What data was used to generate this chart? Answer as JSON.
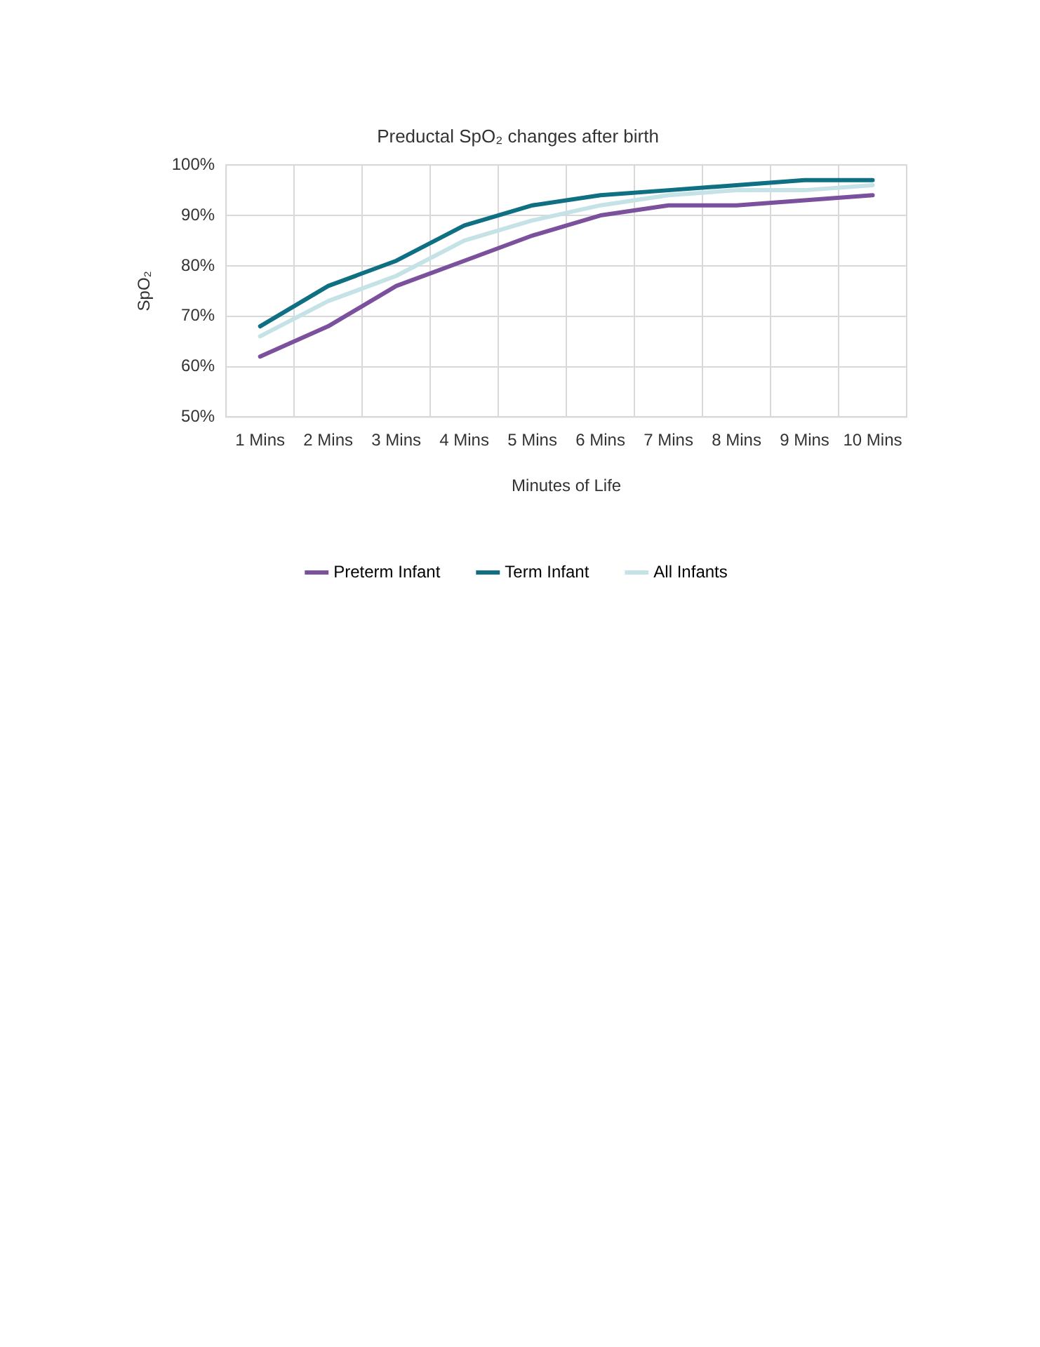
{
  "chart_data": {
    "type": "line",
    "title": "Preductal SpO₂ changes after birth",
    "xlabel": "Minutes of Life",
    "ylabel": "SpO₂",
    "categories": [
      "1 Mins",
      "2 Mins",
      "3 Mins",
      "4 Mins",
      "5 Mins",
      "6 Mins",
      "7 Mins",
      "8 Mins",
      "9 Mins",
      "10 Mins"
    ],
    "series": [
      {
        "name": "Preterm Infant",
        "color": "#7b519d",
        "values": [
          62,
          68,
          76,
          81,
          86,
          90,
          92,
          92,
          93,
          94
        ]
      },
      {
        "name": "Term Infant",
        "color": "#0e7082",
        "values": [
          68,
          76,
          81,
          88,
          92,
          94,
          95,
          96,
          97,
          97
        ]
      },
      {
        "name": "All Infants",
        "color": "#c5e3e6",
        "values": [
          66,
          73,
          78,
          85,
          89,
          92,
          94,
          95,
          95,
          96
        ]
      }
    ],
    "ylim": [
      50,
      100
    ],
    "yticks": [
      {
        "value": 50,
        "label": "50%"
      },
      {
        "value": 60,
        "label": "60%"
      },
      {
        "value": 70,
        "label": "70%"
      },
      {
        "value": 80,
        "label": "80%"
      },
      {
        "value": 90,
        "label": "90%"
      },
      {
        "value": 100,
        "label": "100%"
      }
    ],
    "grid": true,
    "legend": "bottom",
    "marker": "none",
    "line_style": "solid"
  }
}
